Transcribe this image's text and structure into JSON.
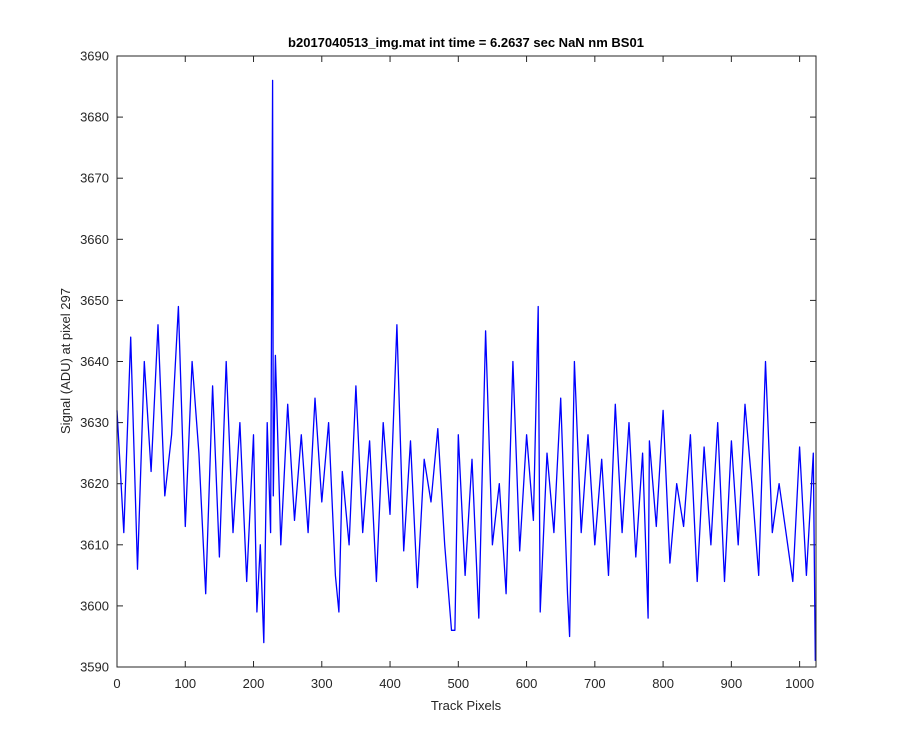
{
  "chart_data": {
    "type": "line",
    "title": "b2017040513_img.mat int time = 6.2637 sec  NaN nm BS01",
    "xlabel": "Track Pixels",
    "ylabel": "Signal (ADU) at pixel 297",
    "xlim": [
      0,
      1024
    ],
    "ylim": [
      3590,
      3690
    ],
    "xticks": [
      0,
      100,
      200,
      300,
      400,
      500,
      600,
      700,
      800,
      900,
      1000
    ],
    "yticks": [
      3590,
      3600,
      3610,
      3620,
      3630,
      3640,
      3650,
      3660,
      3670,
      3680,
      3690
    ],
    "grid": false,
    "line_color": "#0000ff",
    "axis_color": "#262626",
    "series": [
      {
        "x": [
          0,
          10,
          20,
          30,
          40,
          50,
          60,
          70,
          80,
          90,
          100,
          110,
          120,
          130,
          140,
          150,
          160,
          170,
          180,
          190,
          200,
          205,
          210,
          215,
          220,
          225,
          228,
          229,
          232,
          240,
          250,
          260,
          270,
          280,
          290,
          300,
          310,
          320,
          325,
          330,
          340,
          350,
          360,
          370,
          380,
          390,
          400,
          410,
          420,
          430,
          440,
          450,
          460,
          470,
          480,
          490,
          495,
          500,
          510,
          520,
          530,
          540,
          550,
          560,
          570,
          580,
          590,
          600,
          610,
          617,
          620,
          630,
          640,
          650,
          660,
          663,
          670,
          680,
          690,
          700,
          710,
          720,
          730,
          740,
          750,
          760,
          770,
          778,
          780,
          790,
          800,
          810,
          820,
          830,
          840,
          850,
          860,
          870,
          880,
          890,
          900,
          910,
          920,
          930,
          940,
          950,
          960,
          970,
          980,
          990,
          1000,
          1010,
          1020,
          1023
        ],
        "values": [
          3632,
          3612,
          3644,
          3606,
          3640,
          3622,
          3646,
          3618,
          3628,
          3649,
          3613,
          3640,
          3625,
          3602,
          3636,
          3608,
          3640,
          3612,
          3630,
          3604,
          3628,
          3599,
          3610,
          3594,
          3630,
          3612,
          3686,
          3618,
          3641,
          3610,
          3633,
          3614,
          3628,
          3612,
          3634,
          3617,
          3630,
          3605,
          3599,
          3622,
          3610,
          3636,
          3612,
          3627,
          3604,
          3630,
          3615,
          3646,
          3609,
          3627,
          3603,
          3624,
          3617,
          3629,
          3610,
          3596,
          3596,
          3628,
          3605,
          3624,
          3598,
          3645,
          3610,
          3620,
          3602,
          3640,
          3609,
          3628,
          3614,
          3649,
          3599,
          3625,
          3612,
          3634,
          3602,
          3595,
          3640,
          3612,
          3628,
          3610,
          3624,
          3605,
          3633,
          3612,
          3630,
          3608,
          3625,
          3598,
          3627,
          3613,
          3632,
          3607,
          3620,
          3613,
          3628,
          3604,
          3626,
          3610,
          3630,
          3604,
          3627,
          3610,
          3633,
          3620,
          3605,
          3640,
          3612,
          3620,
          3612,
          3604,
          3626,
          3605,
          3625,
          3591
        ]
      }
    ]
  }
}
